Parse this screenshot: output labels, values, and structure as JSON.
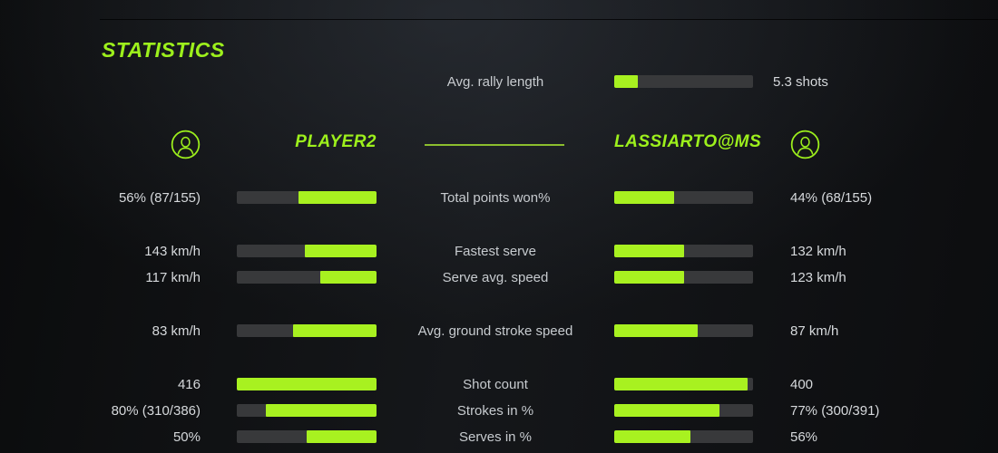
{
  "colors": {
    "accent": "#9df01c",
    "bar_fill": "#a8f120",
    "bar_track": "#38393b",
    "divider": "#8cbe2e",
    "label_text": "#c7cbcf",
    "value_text": "#d6d9dc"
  },
  "header": {
    "title": "STATISTICS"
  },
  "players": {
    "left": {
      "name": "PLAYER2",
      "icon": "person-circle-icon"
    },
    "right": {
      "name": "LASSIARTO@MS",
      "icon": "person-circle-icon"
    }
  },
  "rally": {
    "label": "Avg. rally length",
    "value": "5.3 shots",
    "fill": 17
  },
  "rows": [
    {
      "label": "Total points won%",
      "left": {
        "text": "56% (87/155)",
        "fill": 56
      },
      "right": {
        "text": "44% (68/155)",
        "fill": 43
      }
    },
    {
      "label": "Fastest serve",
      "left": {
        "text": "143 km/h",
        "fill": 51
      },
      "right": {
        "text": "132 km/h",
        "fill": 50
      }
    },
    {
      "label": "Serve avg. speed",
      "left": {
        "text": "117 km/h",
        "fill": 40
      },
      "right": {
        "text": "123 km/h",
        "fill": 50
      }
    },
    {
      "label": "Avg. ground stroke speed",
      "left": {
        "text": "83 km/h",
        "fill": 60
      },
      "right": {
        "text": "87 km/h",
        "fill": 60
      }
    },
    {
      "label": "Shot count",
      "left": {
        "text": "416",
        "fill": 100
      },
      "right": {
        "text": "400",
        "fill": 96
      }
    },
    {
      "label": "Strokes in %",
      "left": {
        "text": "80% (310/386)",
        "fill": 79
      },
      "right": {
        "text": "77% (300/391)",
        "fill": 76
      }
    },
    {
      "label": "Serves in %",
      "left": {
        "text": "50%",
        "fill": 50
      },
      "right": {
        "text": "56%",
        "fill": 55
      }
    }
  ]
}
